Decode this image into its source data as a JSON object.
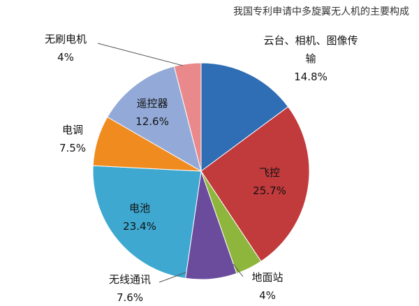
{
  "chart_data": {
    "type": "pie",
    "title": "我国专利申请中多旋翼无人机的主要构成",
    "categories": [
      "云台、相机、图像传输",
      "飞控",
      "地面站",
      "无线通讯",
      "电池",
      "电调",
      "遥控器",
      "无刷电机"
    ],
    "values": [
      14.8,
      25.7,
      4,
      7.6,
      23.4,
      7.5,
      12.6,
      4
    ],
    "value_labels": [
      "14.8%",
      "25.7%",
      "4%",
      "7.6%",
      "23.4%",
      "7.5%",
      "12.6%",
      "4%"
    ],
    "colors": [
      "#2f6db5",
      "#c13a3c",
      "#8fb63c",
      "#6b4c9c",
      "#3ea8d0",
      "#f08b1f",
      "#93aad8",
      "#e9898b"
    ]
  }
}
